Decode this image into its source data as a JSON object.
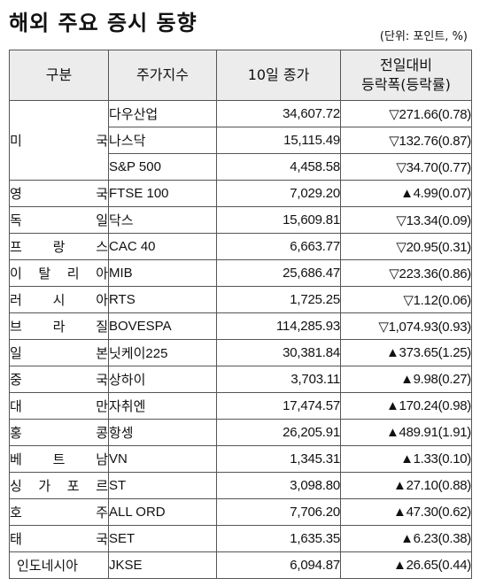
{
  "title": "해외 주요 증시 동향",
  "unit": "(단위: 포인트, %)",
  "headers": {
    "country": "구분",
    "index": "주가지수",
    "close": "10일 종가",
    "change_line1": "전일대비",
    "change_line2": "등락폭(등락률)"
  },
  "rows": [
    {
      "country": "미 국",
      "index": "다우산업",
      "close": "34,607.72",
      "change": "▽271.66(0.78)"
    },
    {
      "country": "",
      "index": "나스닥",
      "close": "15,115.49",
      "change": "▽132.76(0.87)"
    },
    {
      "country": "",
      "index": "S&P 500",
      "close": "4,458.58",
      "change": "▽34.70(0.77)"
    },
    {
      "country": "영 국",
      "index": "FTSE 100",
      "close": "7,029.20",
      "change": "▲4.99(0.07)"
    },
    {
      "country": "독 일",
      "index": "닥스",
      "close": "15,609.81",
      "change": "▽13.34(0.09)"
    },
    {
      "country": "프 랑 스",
      "index": "CAC 40",
      "close": "6,663.77",
      "change": "▽20.95(0.31)"
    },
    {
      "country": "이 탈 리 아",
      "index": "MIB",
      "close": "25,686.47",
      "change": "▽223.36(0.86)"
    },
    {
      "country": "러 시 아",
      "index": "RTS",
      "close": "1,725.25",
      "change": "▽1.12(0.06)"
    },
    {
      "country": "브 라 질",
      "index": "BOVESPA",
      "close": "114,285.93",
      "change": "▽1,074.93(0.93)"
    },
    {
      "country": "일 본",
      "index": "닛케이225",
      "close": "30,381.84",
      "change": "▲373.65(1.25)"
    },
    {
      "country": "중 국",
      "index": "상하이",
      "close": "3,703.11",
      "change": "▲9.98(0.27)"
    },
    {
      "country": "대 만",
      "index": "자취엔",
      "close": "17,474.57",
      "change": "▲170.24(0.98)"
    },
    {
      "country": "홍 콩",
      "index": "항셍",
      "close": "26,205.91",
      "change": "▲489.91(1.91)"
    },
    {
      "country": "베 트 남",
      "index": "VN",
      "close": "1,345.31",
      "change": "▲1.33(0.10)"
    },
    {
      "country": "싱 가 포 르",
      "index": "ST",
      "close": "3,098.80",
      "change": "▲27.10(0.88)"
    },
    {
      "country": "호 주",
      "index": "ALL ORD",
      "close": "7,706.20",
      "change": "▲47.30(0.62)"
    },
    {
      "country": "태 국",
      "index": "SET",
      "close": "1,635.35",
      "change": "▲6.23(0.38)"
    },
    {
      "country": "인도네시아",
      "index": "JKSE",
      "close": "6,094.87",
      "change": "▲26.65(0.44)"
    }
  ]
}
